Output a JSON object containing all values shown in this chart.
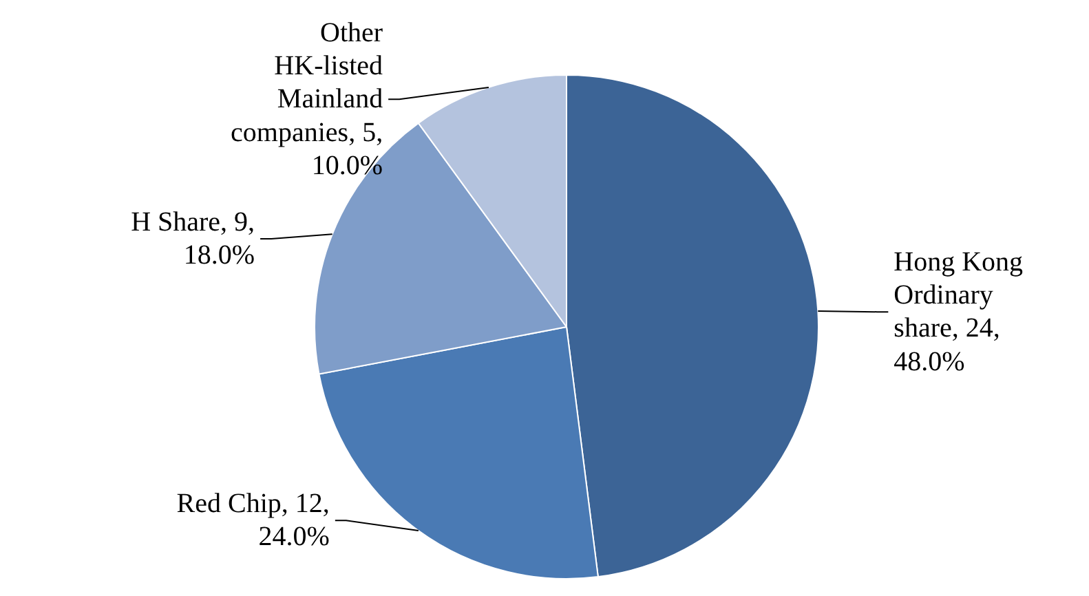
{
  "chart_data": {
    "type": "pie",
    "categories": [
      "Hong Kong Ordinary share",
      "Red Chip",
      "H Share",
      "Other HK-listed Mainland companies"
    ],
    "values": [
      24,
      12,
      9,
      5
    ],
    "colors": [
      "#3c6496",
      "#4a7ab4",
      "#7f9dc9",
      "#b4c3de"
    ],
    "value_labels": [
      "24, 48.0%",
      "12, 24.0%",
      "9, 18.0%",
      "5, 10.0%"
    ]
  }
}
